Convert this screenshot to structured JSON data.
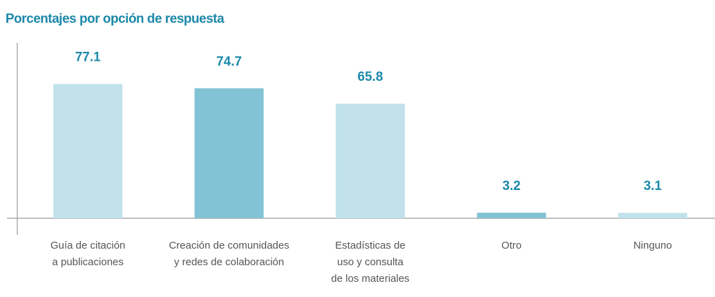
{
  "chart_data": {
    "type": "bar",
    "title": "Porcentajes por opción de respuesta",
    "categories": [
      [
        "Guía de citación",
        "a publicaciones"
      ],
      [
        "Creación de comunidades",
        "y redes de colaboración"
      ],
      [
        "Estadísticas de",
        "uso y consulta",
        "de los materiales"
      ],
      [
        "Otro"
      ],
      [
        "Ninguno"
      ]
    ],
    "values": [
      77.1,
      74.7,
      65.8,
      3.2,
      3.1
    ],
    "colors": [
      "#c1e2ea",
      "#82c3d5",
      "#c1e2ea",
      "#82c3d5",
      "#c1e2ea"
    ],
    "ylim": [
      0,
      100
    ]
  }
}
